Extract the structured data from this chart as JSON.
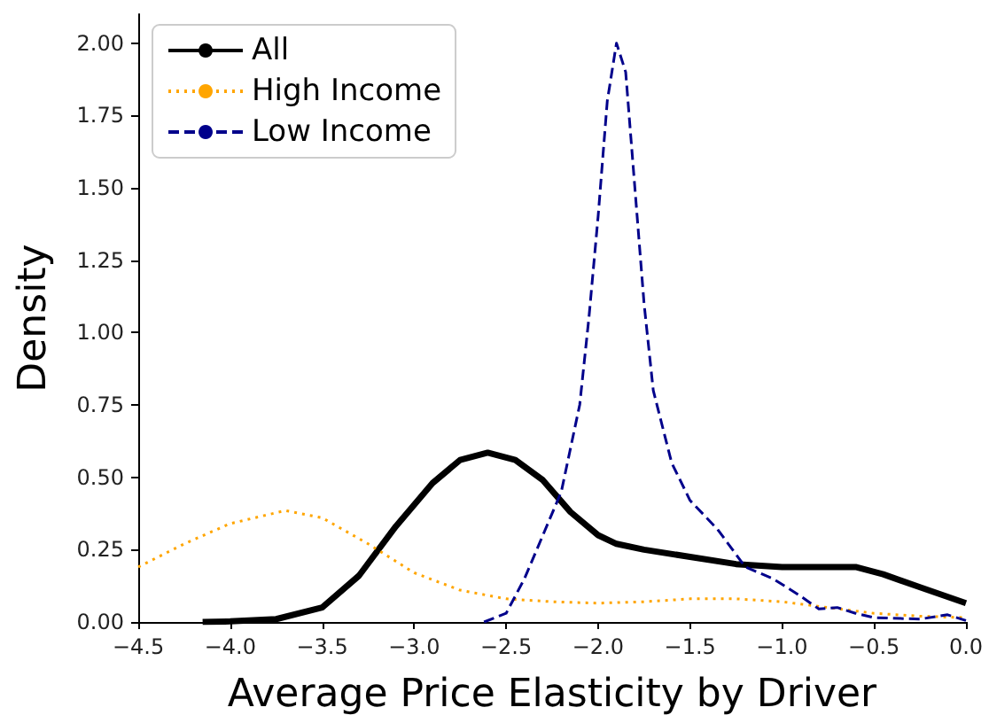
{
  "chart_data": {
    "type": "line",
    "xlabel": "Average Price Elasticity by Driver",
    "ylabel": "Density",
    "xlim": [
      -4.5,
      0
    ],
    "ylim": [
      0,
      2.1
    ],
    "xticks": [
      {
        "value": -4.5,
        "label": "−4.5"
      },
      {
        "value": -4,
        "label": "−4.0"
      },
      {
        "value": -3.5,
        "label": "−3.5"
      },
      {
        "value": -3,
        "label": "−3.0"
      },
      {
        "value": -2.5,
        "label": "−2.5"
      },
      {
        "value": -2,
        "label": "−2.0"
      },
      {
        "value": -1.5,
        "label": "−1.5"
      },
      {
        "value": -1,
        "label": "−1.0"
      },
      {
        "value": -0.5,
        "label": "−0.5"
      },
      {
        "value": 0,
        "label": "0.0"
      }
    ],
    "yticks": [
      {
        "value": 0,
        "label": "0.00"
      },
      {
        "value": 0.25,
        "label": "0.25"
      },
      {
        "value": 0.5,
        "label": "0.50"
      },
      {
        "value": 0.75,
        "label": "0.75"
      },
      {
        "value": 1,
        "label": "1.00"
      },
      {
        "value": 1.25,
        "label": "1.25"
      },
      {
        "value": 1.5,
        "label": "1.50"
      },
      {
        "value": 1.75,
        "label": "1.75"
      },
      {
        "value": 2,
        "label": "2.00"
      }
    ],
    "grid": false,
    "legend": "top left",
    "marker": "none",
    "series": [
      {
        "name": "All",
        "color": "#000000",
        "line_style": "solid",
        "x": [
          -4.15,
          -4.0,
          -3.75,
          -3.5,
          -3.3,
          -3.1,
          -2.9,
          -2.75,
          -2.6,
          -2.45,
          -2.3,
          -2.15,
          -2.0,
          -1.9,
          -1.75,
          -1.5,
          -1.25,
          -1.0,
          -0.75,
          -0.6,
          -0.45,
          -0.25,
          0
        ],
        "values": [
          0,
          0.002,
          0.01,
          0.05,
          0.16,
          0.33,
          0.48,
          0.56,
          0.585,
          0.56,
          0.49,
          0.38,
          0.3,
          0.27,
          0.25,
          0.225,
          0.2,
          0.19,
          0.19,
          0.19,
          0.165,
          0.12,
          0.065
        ]
      },
      {
        "name": "High Income",
        "color": "#ffa500",
        "line_style": "dotted",
        "x": [
          -4.5,
          -4.25,
          -4.0,
          -3.7,
          -3.5,
          -3.25,
          -3.0,
          -2.75,
          -2.5,
          -2.25,
          -2.0,
          -1.75,
          -1.5,
          -1.25,
          -1.0,
          -0.75,
          -0.5,
          -0.25,
          0
        ],
        "values": [
          0.19,
          0.27,
          0.34,
          0.385,
          0.36,
          0.27,
          0.17,
          0.11,
          0.08,
          0.07,
          0.065,
          0.07,
          0.08,
          0.08,
          0.07,
          0.05,
          0.03,
          0.02,
          0.015
        ]
      },
      {
        "name": "Low Income",
        "color": "#00008b",
        "line_style": "dashed",
        "x": [
          -2.62,
          -2.5,
          -2.4,
          -2.3,
          -2.2,
          -2.1,
          -2.05,
          -2.0,
          -1.95,
          -1.9,
          -1.85,
          -1.8,
          -1.75,
          -1.7,
          -1.6,
          -1.5,
          -1.35,
          -1.2,
          -1.05,
          -0.9,
          -0.8,
          -0.7,
          -0.6,
          -0.5,
          -0.25,
          -0.1,
          0
        ],
        "values": [
          0,
          0.03,
          0.15,
          0.3,
          0.45,
          0.75,
          1.05,
          1.4,
          1.8,
          2.0,
          1.9,
          1.5,
          1.1,
          0.8,
          0.55,
          0.42,
          0.32,
          0.19,
          0.15,
          0.09,
          0.045,
          0.05,
          0.03,
          0.015,
          0.01,
          0.025,
          0.005
        ]
      }
    ]
  }
}
